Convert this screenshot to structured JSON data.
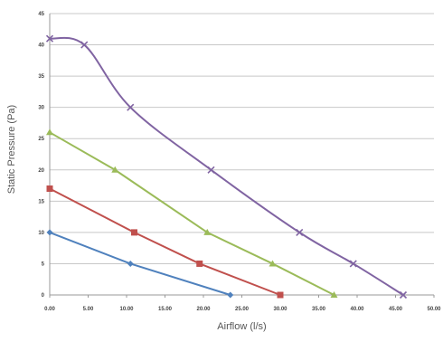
{
  "chart_data": {
    "type": "line",
    "xlabel": "Airflow (l/s)",
    "ylabel": "Static Pressure (Pa)",
    "xlim": [
      0,
      50
    ],
    "ylim": [
      0,
      45
    ],
    "xticks": [
      "0.00",
      "5.00",
      "10.00",
      "15.00",
      "20.00",
      "25.00",
      "30.00",
      "35.00",
      "40.00",
      "45.00",
      "50.00"
    ],
    "yticks": [
      "0",
      "5",
      "10",
      "15",
      "20",
      "25",
      "30",
      "35",
      "40",
      "45"
    ],
    "grid": "horizontal",
    "legend": "none",
    "series": [
      {
        "color": "#4f81bd",
        "marker": "diamond",
        "smooth": false,
        "points": [
          [
            0,
            10
          ],
          [
            10.5,
            5
          ],
          [
            23.5,
            0
          ]
        ]
      },
      {
        "color": "#c0504d",
        "marker": "square",
        "smooth": false,
        "points": [
          [
            0,
            17
          ],
          [
            11,
            10
          ],
          [
            19.5,
            5
          ],
          [
            30,
            0
          ]
        ]
      },
      {
        "color": "#9bbb59",
        "marker": "triangle",
        "smooth": false,
        "points": [
          [
            0,
            26
          ],
          [
            8.5,
            20
          ],
          [
            20.5,
            10
          ],
          [
            29,
            5
          ],
          [
            37,
            0
          ]
        ]
      },
      {
        "color": "#8064a2",
        "marker": "x",
        "smooth": true,
        "points": [
          [
            0,
            41
          ],
          [
            4.5,
            40
          ],
          [
            10.5,
            30
          ],
          [
            21,
            20
          ],
          [
            32.5,
            10
          ],
          [
            39.5,
            5
          ],
          [
            46,
            0
          ]
        ]
      }
    ]
  }
}
